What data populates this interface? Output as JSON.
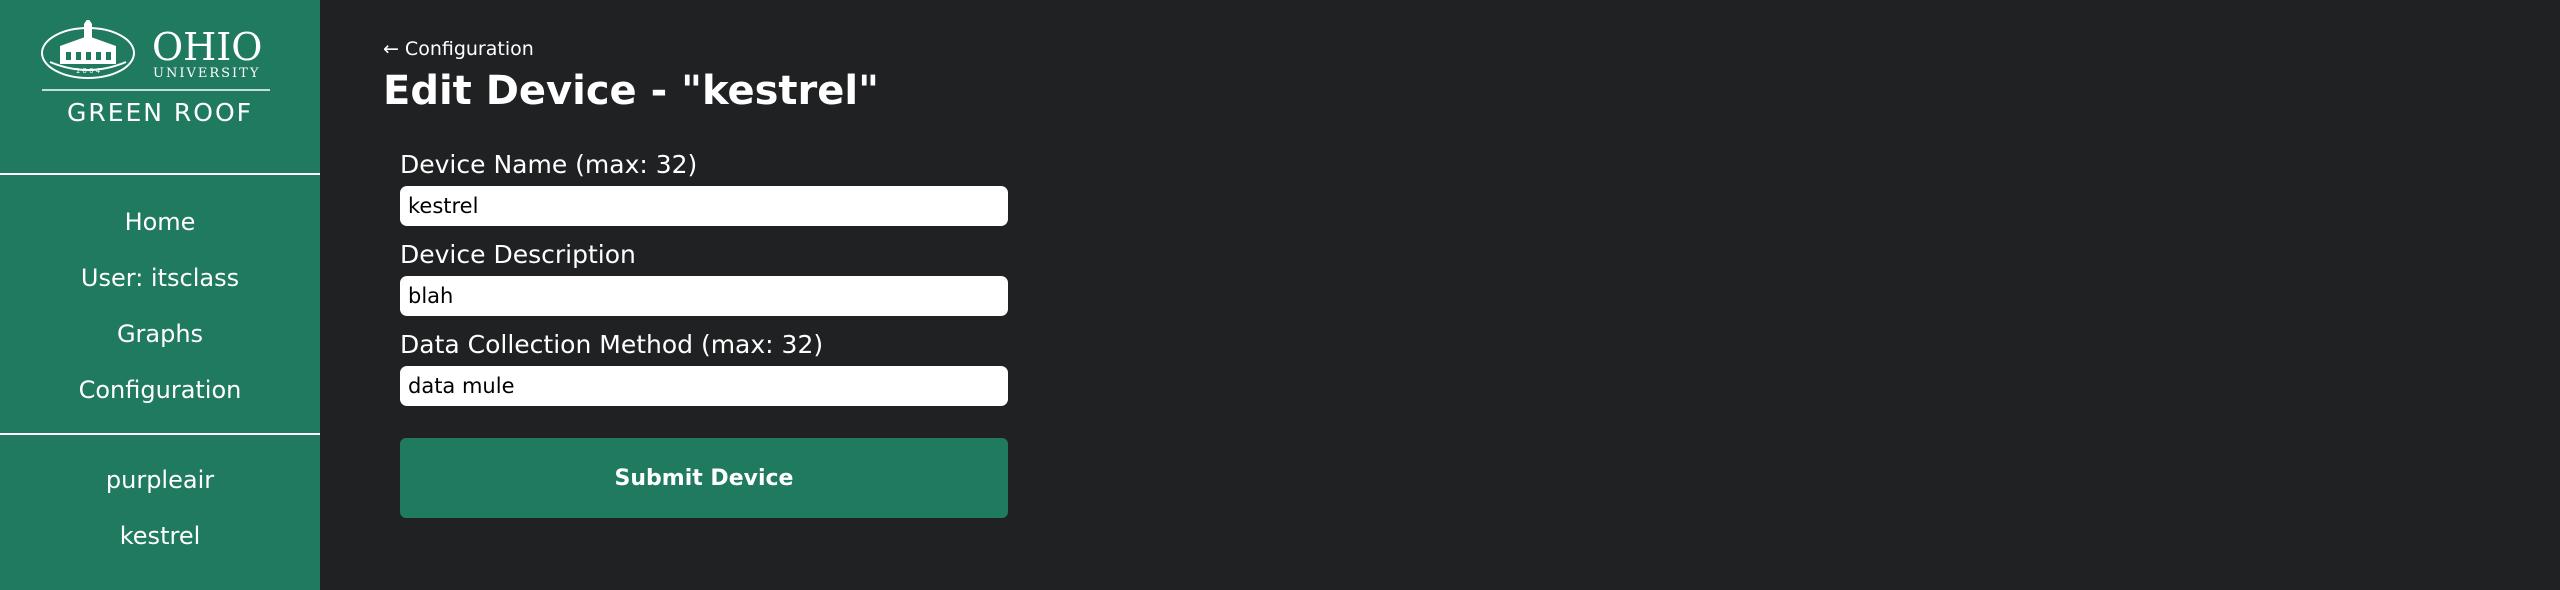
{
  "sidebar": {
    "logo": {
      "wordmark": "OHIO",
      "subtitle": "UNIVERSITY",
      "year": "1 8 0 4",
      "tagline": "GREEN ROOF"
    },
    "nav_items": [
      {
        "label": "Home"
      },
      {
        "label": "User: itsclass"
      },
      {
        "label": "Graphs"
      },
      {
        "label": "Configuration"
      }
    ],
    "device_items": [
      {
        "label": "purpleair"
      },
      {
        "label": "kestrel"
      }
    ]
  },
  "main": {
    "back_link": {
      "arrow": "←",
      "label": "Configuration"
    },
    "title": "Edit Device - \"kestrel\"",
    "fields": [
      {
        "label": "Device Name (max: 32)",
        "value": "kestrel"
      },
      {
        "label": "Device Description",
        "value": "blah"
      },
      {
        "label": "Data Collection Method (max: 32)",
        "value": "data mule"
      }
    ],
    "submit_label": "Submit Device"
  },
  "colors": {
    "brand_green": "#1f7a5f",
    "background": "#202122",
    "text": "#ffffff"
  }
}
